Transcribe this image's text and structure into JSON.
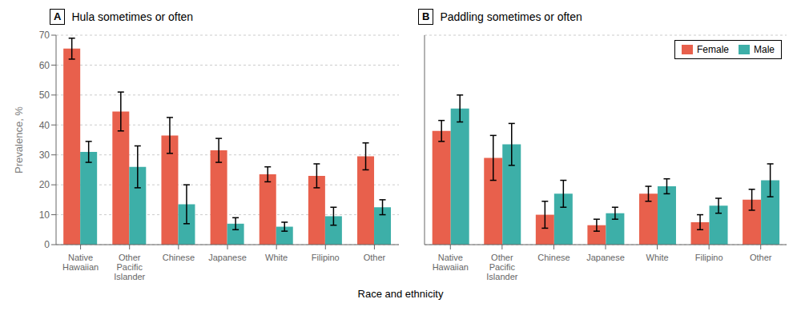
{
  "chart_data": [
    {
      "type": "bar",
      "title": "Hula sometimes or often",
      "annotations": [
        "A"
      ],
      "x_label": "Race and ethnicity",
      "y_label": "Prevalence, %",
      "categories": [
        "Native\nHawaiian",
        "Other\nPacific\nIslander",
        "Chinese",
        "Japanese",
        "White",
        "Filipino",
        "Other"
      ],
      "series": [
        {
          "name": "Female",
          "color": "#E8604C",
          "values": [
            65.5,
            44.5,
            36.5,
            31.5,
            23.5,
            23.0,
            29.5
          ],
          "errors": [
            3.5,
            6.5,
            6.0,
            4.0,
            2.5,
            4.0,
            4.5
          ]
        },
        {
          "name": "Male",
          "color": "#3DAFA8",
          "values": [
            31.0,
            26.0,
            13.5,
            7.0,
            6.0,
            9.5,
            12.5
          ],
          "errors": [
            3.5,
            7.0,
            6.5,
            2.0,
            1.5,
            3.0,
            2.5
          ]
        }
      ],
      "ylim": [
        0,
        70
      ],
      "yticks": [
        0,
        10,
        20,
        30,
        40,
        50,
        60,
        70
      ],
      "grid": true
    },
    {
      "type": "bar",
      "title": "Paddling sometimes or often",
      "annotations": [
        "B"
      ],
      "categories": [
        "Native\nHawaiian",
        "Other\nPacific\nIslander",
        "Chinese",
        "Japanese",
        "White",
        "Filipino",
        "Other"
      ],
      "series": [
        {
          "name": "Female",
          "color": "#E8604C",
          "values": [
            38.0,
            29.0,
            10.0,
            6.5,
            17.0,
            7.5,
            15.0
          ],
          "errors": [
            3.5,
            7.5,
            4.5,
            2.0,
            2.5,
            2.5,
            3.5
          ]
        },
        {
          "name": "Male",
          "color": "#3DAFA8",
          "values": [
            45.5,
            33.5,
            17.0,
            10.5,
            19.5,
            13.0,
            21.5
          ],
          "errors": [
            4.5,
            7.0,
            4.5,
            2.0,
            2.5,
            2.5,
            5.5
          ]
        }
      ],
      "ylim": [
        0,
        70
      ],
      "yticks": [
        0,
        10,
        20,
        30,
        40,
        50,
        60,
        70
      ],
      "grid": true,
      "legend": "upper right",
      "tick_labels": "x"
    }
  ]
}
